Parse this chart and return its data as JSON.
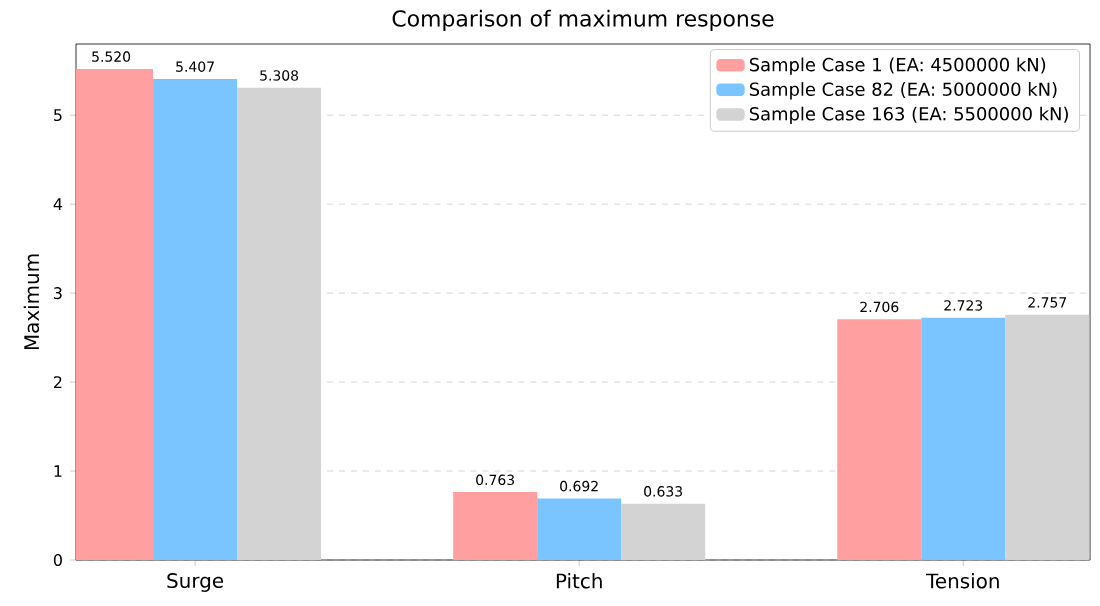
{
  "chart_data": {
    "type": "bar",
    "title": "Comparison of maximum response",
    "ylabel": "Maximum",
    "categories": [
      "Surge",
      "Pitch",
      "Tension"
    ],
    "series": [
      {
        "name": "Sample Case 1 (EA: 4500000 kN)",
        "color": "#ff9f9f",
        "values": [
          5.52,
          0.763,
          2.706
        ],
        "value_labels": [
          "5.520",
          "0.763",
          "2.706"
        ]
      },
      {
        "name": "Sample Case 82 (EA: 5000000 kN)",
        "color": "#7ac5ff",
        "values": [
          5.407,
          0.692,
          2.723
        ],
        "value_labels": [
          "5.407",
          "0.692",
          "2.723"
        ]
      },
      {
        "name": "Sample Case 163 (EA: 5500000 kN)",
        "color": "#d3d3d3",
        "values": [
          5.308,
          0.633,
          2.757
        ],
        "value_labels": [
          "5.308",
          "0.633",
          "2.757"
        ]
      }
    ],
    "ylim": [
      0,
      5.8
    ],
    "yticks": [
      0,
      1,
      2,
      3,
      4,
      5
    ],
    "grid": "y",
    "legend": "top right"
  }
}
